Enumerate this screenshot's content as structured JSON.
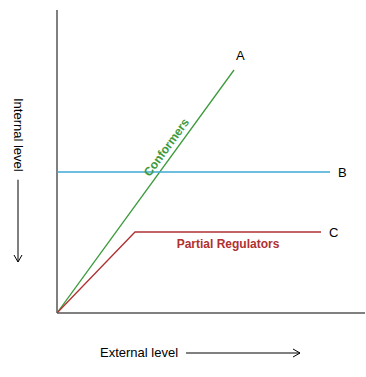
{
  "chart_data": {
    "type": "line",
    "x_label": "External level",
    "y_label": "Internal level",
    "xlim": [
      0,
      10
    ],
    "ylim": [
      0,
      10
    ],
    "xticks": [],
    "yticks": [],
    "tick_labels": false,
    "grid": false,
    "annotations": [
      "Conformers",
      "Partial Regulators"
    ],
    "series": [
      {
        "name": "A",
        "color": "#3c9a3c",
        "x": [
          0,
          5.9
        ],
        "values": [
          0,
          8.1
        ]
      },
      {
        "name": "B",
        "color": "#3fa9d6",
        "x": [
          0,
          9.1
        ],
        "values": [
          4.7,
          4.7
        ]
      },
      {
        "name": "C",
        "color": "#b03030",
        "x": [
          0,
          2.6,
          8.8
        ],
        "values": [
          0,
          2.7,
          2.7
        ]
      }
    ]
  }
}
